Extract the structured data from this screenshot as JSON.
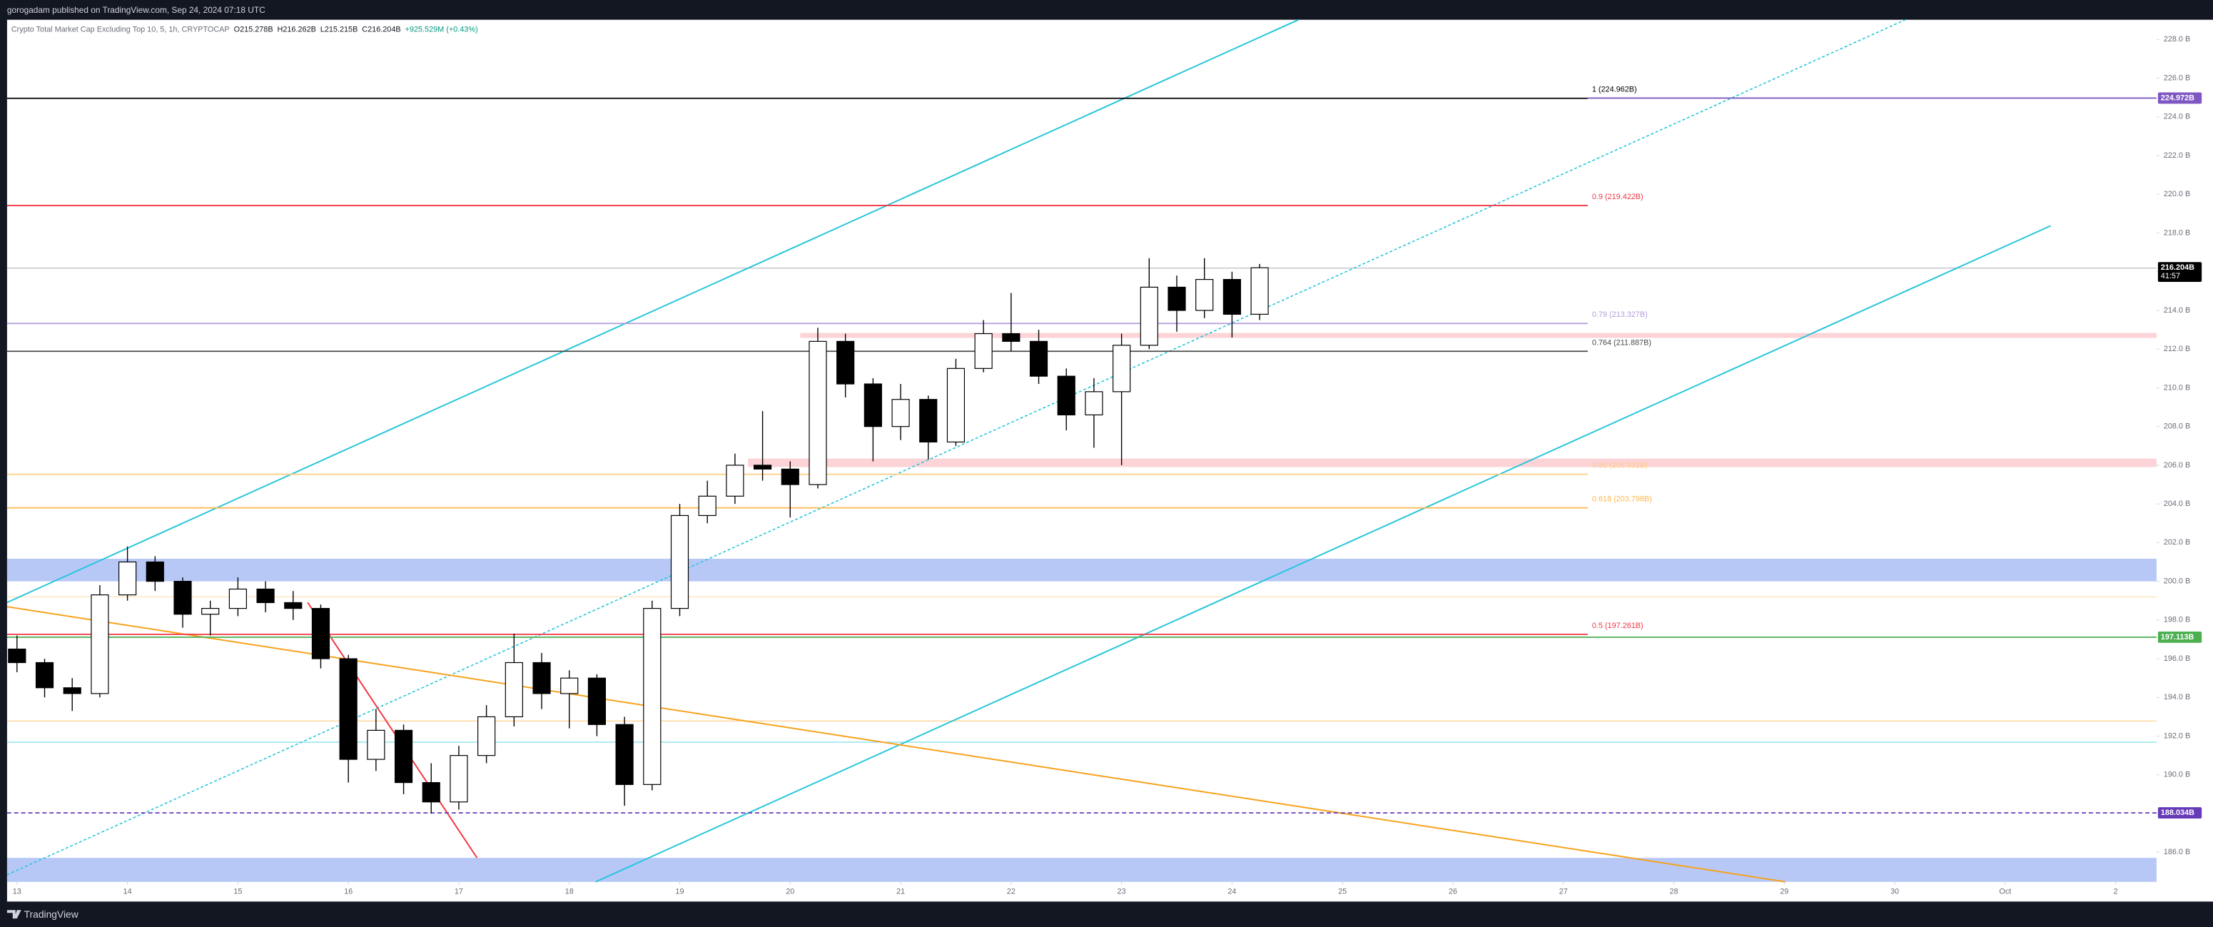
{
  "header": {
    "text": "gorogadam published on TradingView.com, Sep 24, 2024 07:18 UTC"
  },
  "footer": {
    "brand": "TradingView"
  },
  "chart_data": {
    "type": "candlestick",
    "title": "Crypto Total Market Cap Excluding Top 10, 5, 1h, CRYPTOCAP",
    "ohlc_legend": [
      "O215.278B",
      "H216.262B",
      "L215.215B",
      "C216.204B",
      "+925.529M (+0.43%)"
    ],
    "x": [
      13,
      13.25,
      13.5,
      13.75,
      14,
      14.25,
      14.5,
      14.75,
      15,
      15.25,
      15.5,
      15.75,
      16,
      16.25,
      16.5,
      16.75,
      17,
      17.25,
      17.5,
      17.75,
      18,
      18.25,
      18.5,
      18.75,
      19,
      19.25,
      19.5,
      19.75,
      20,
      20.25,
      20.5,
      20.75,
      21,
      21.25,
      21.5,
      21.75,
      22,
      22.25,
      22.5,
      22.75,
      23,
      23.25,
      23.5,
      23.75,
      24,
      24.25
    ],
    "open": [
      196.5,
      195.8,
      194.5,
      194.2,
      199.3,
      201.0,
      200.0,
      198.3,
      198.6,
      199.6,
      198.9,
      198.6,
      196.0,
      190.8,
      192.3,
      189.6,
      188.6,
      191.0,
      193.0,
      195.8,
      194.2,
      195.0,
      192.6,
      189.5,
      198.6,
      203.4,
      204.4,
      206.0,
      205.8,
      205.0,
      212.4,
      210.2,
      208.0,
      209.4,
      207.2,
      211.0,
      212.8,
      212.4,
      210.6,
      208.6,
      209.8,
      212.2,
      215.2,
      214.0,
      215.6,
      213.8
    ],
    "high": [
      197.2,
      196.0,
      195.0,
      199.8,
      201.8,
      201.3,
      200.2,
      199.0,
      200.2,
      200.0,
      199.5,
      198.8,
      196.2,
      193.4,
      192.6,
      190.6,
      191.5,
      193.6,
      197.3,
      196.3,
      195.4,
      195.2,
      193.0,
      199.0,
      204.0,
      205.2,
      206.6,
      208.8,
      206.2,
      213.1,
      212.8,
      210.5,
      210.2,
      209.6,
      211.5,
      213.5,
      214.9,
      213.0,
      211.0,
      210.5,
      212.8,
      216.7,
      215.8,
      216.7,
      216.0,
      216.4
    ],
    "low": [
      195.3,
      194.0,
      193.3,
      194.0,
      199.0,
      199.5,
      197.6,
      197.2,
      198.2,
      198.4,
      198.0,
      195.5,
      189.6,
      190.2,
      189.0,
      188.0,
      188.2,
      190.6,
      192.5,
      193.4,
      192.4,
      192.0,
      188.4,
      189.2,
      198.2,
      203.0,
      204.0,
      205.2,
      203.3,
      204.8,
      209.5,
      206.2,
      207.3,
      206.3,
      207.0,
      210.8,
      211.9,
      210.2,
      207.8,
      206.9,
      206.0,
      212.0,
      212.9,
      213.6,
      212.6,
      213.5
    ],
    "close": [
      195.8,
      194.5,
      194.2,
      199.3,
      201.0,
      200.0,
      198.3,
      198.6,
      199.6,
      198.9,
      198.6,
      196.0,
      190.8,
      192.3,
      189.6,
      188.6,
      191.0,
      193.0,
      195.8,
      194.2,
      195.0,
      192.6,
      189.5,
      198.6,
      203.4,
      204.4,
      206.0,
      205.8,
      205.0,
      212.4,
      210.2,
      208.0,
      209.4,
      207.2,
      211.0,
      212.8,
      212.4,
      210.6,
      208.6,
      209.8,
      212.2,
      215.2,
      214.0,
      215.6,
      213.8,
      216.204
    ],
    "up_color": "#ffffff",
    "down_color": "#000000",
    "xlim": [
      12.91,
      32.37
    ],
    "xticks": [
      13,
      14,
      15,
      16,
      17,
      18,
      19,
      20,
      21,
      22,
      23,
      24,
      25,
      26,
      27,
      28,
      29,
      30,
      {
        "value": 31,
        "label": "Oct"
      },
      {
        "value": 32,
        "label": "2"
      }
    ],
    "ylim": [
      184.47,
      229.02
    ],
    "yticks": [
      {
        "value": 186,
        "label": "186.0 B"
      },
      {
        "value": 188,
        "label": "188.0 B"
      },
      {
        "value": 190,
        "label": "190.0 B"
      },
      {
        "value": 192,
        "label": "192.0 B"
      },
      {
        "value": 194,
        "label": "194.0 B"
      },
      {
        "value": 196,
        "label": "196.0 B"
      },
      {
        "value": 198,
        "label": "198.0 B"
      },
      {
        "value": 200,
        "label": "200.0 B"
      },
      {
        "value": 202,
        "label": "202.0 B"
      },
      {
        "value": 204,
        "label": "204.0 B"
      },
      {
        "value": 206,
        "label": "206.0 B"
      },
      {
        "value": 208,
        "label": "208.0 B"
      },
      {
        "value": 210,
        "label": "210.0 B"
      },
      {
        "value": 212,
        "label": "212.0 B"
      },
      {
        "value": 214,
        "label": "214.0 B"
      },
      {
        "value": 216,
        "label": "216.0 B"
      },
      {
        "value": 218,
        "label": "218.0 B"
      },
      {
        "value": 220,
        "label": "220.0 B"
      },
      {
        "value": 222,
        "label": "222.0 B"
      },
      {
        "value": 224,
        "label": "224.0 B"
      },
      {
        "value": 226,
        "label": "226.0 B"
      },
      {
        "value": 228,
        "label": "228.0 B"
      }
    ],
    "grid": false,
    "levels": [
      {
        "label": "1 (224.962B)",
        "value": 224.962,
        "color": "#000000"
      },
      {
        "label": "0.9 (219.422B)",
        "value": 219.422,
        "color": "#f23645"
      },
      {
        "label": "0.79 (213.327B)",
        "value": 213.327,
        "color": "#b39ddb"
      },
      {
        "label": "0.764 (211.887B)",
        "value": 211.887,
        "color": "#4a4a4a"
      },
      {
        "label": "0.65 (205.531B)",
        "value": 205.531,
        "color": "#ffcc80"
      },
      {
        "label": "0.618 (203.798B)",
        "value": 203.798,
        "color": "#ffb74d"
      },
      {
        "label": "0.5 (197.261B)",
        "value": 197.261,
        "color": "#f23645"
      }
    ],
    "price_tags": [
      {
        "label": "224.972B",
        "value": 224.972,
        "color": "#7e57c2"
      },
      {
        "label": "216.204B",
        "value": 216.204,
        "color": "#000000",
        "countdown": "41:57"
      },
      {
        "label": "197.113B",
        "value": 197.113,
        "color": "#4caf50"
      },
      {
        "label": "188.034B",
        "value": 188.034,
        "color": "#673ab7"
      }
    ]
  }
}
